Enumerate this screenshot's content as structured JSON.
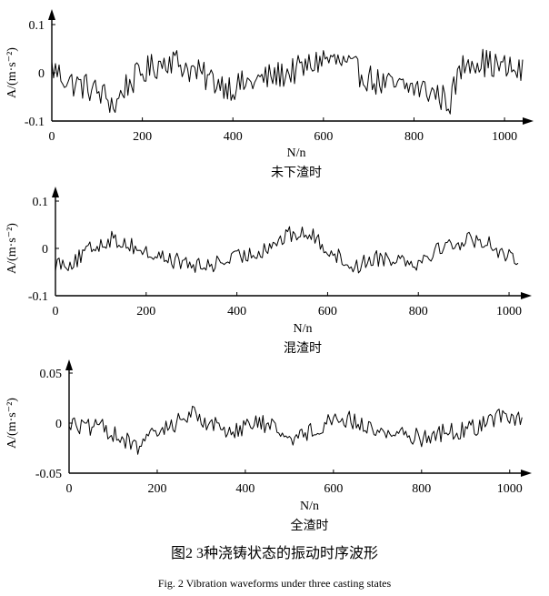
{
  "chart_data": [
    {
      "type": "line",
      "caption": "未下渣时",
      "xlabel": "N/n",
      "ylabel": "A/(m·s⁻²)",
      "xlim": [
        0,
        1040
      ],
      "ylim": [
        -0.1,
        0.1
      ],
      "xticks": [
        0,
        200,
        400,
        600,
        800,
        1000
      ],
      "yticks": [
        -0.1,
        0,
        0.1
      ],
      "xtick_labels": [
        "0",
        "200",
        "400",
        "600",
        "800",
        "1000"
      ],
      "ytick_labels": [
        "-0.1",
        "0",
        "0.1"
      ],
      "x_end": 1040,
      "points": [
        [
          0,
          0.01
        ],
        [
          40,
          -0.02
        ],
        [
          80,
          -0.03
        ],
        [
          120,
          -0.05
        ],
        [
          140,
          -0.07
        ],
        [
          160,
          -0.03
        ],
        [
          200,
          0.0
        ],
        [
          240,
          0.02
        ],
        [
          260,
          0.03
        ],
        [
          300,
          0.01
        ],
        [
          340,
          -0.01
        ],
        [
          400,
          -0.03
        ],
        [
          440,
          -0.02
        ],
        [
          480,
          -0.01
        ],
        [
          520,
          0.0
        ],
        [
          560,
          0.01
        ],
        [
          600,
          0.03
        ],
        [
          640,
          0.02
        ],
        [
          680,
          0.0
        ],
        [
          720,
          -0.02
        ],
        [
          760,
          -0.03
        ],
        [
          800,
          -0.03
        ],
        [
          840,
          -0.04
        ],
        [
          880,
          -0.06
        ],
        [
          900,
          0.0
        ],
        [
          920,
          0.03
        ],
        [
          960,
          0.02
        ],
        [
          1000,
          0.01
        ],
        [
          1040,
          0.0
        ]
      ],
      "noise_amplitude": 0.03
    },
    {
      "type": "line",
      "caption": "混渣时",
      "xlabel": "N/n",
      "ylabel": "A/(m·s⁻²)",
      "xlim": [
        0,
        1050
      ],
      "ylim": [
        -0.1,
        0.1
      ],
      "xticks": [
        0,
        200,
        400,
        600,
        800,
        1000
      ],
      "yticks": [
        -0.1,
        0,
        0.1
      ],
      "xtick_labels": [
        "0",
        "200",
        "400",
        "600",
        "800",
        "1000"
      ],
      "ytick_labels": [
        "-0.1",
        "0",
        "0.1"
      ],
      "x_end": 1020,
      "points": [
        [
          0,
          -0.03
        ],
        [
          40,
          -0.03
        ],
        [
          80,
          0.0
        ],
        [
          120,
          0.02
        ],
        [
          160,
          0.01
        ],
        [
          200,
          -0.01
        ],
        [
          240,
          -0.02
        ],
        [
          280,
          -0.03
        ],
        [
          320,
          -0.04
        ],
        [
          360,
          -0.03
        ],
        [
          400,
          -0.02
        ],
        [
          440,
          -0.01
        ],
        [
          480,
          0.01
        ],
        [
          520,
          0.03
        ],
        [
          560,
          0.03
        ],
        [
          600,
          0.0
        ],
        [
          640,
          -0.03
        ],
        [
          660,
          -0.04
        ],
        [
          700,
          -0.02
        ],
        [
          760,
          -0.02
        ],
        [
          800,
          -0.03
        ],
        [
          840,
          0.0
        ],
        [
          880,
          0.01
        ],
        [
          920,
          0.02
        ],
        [
          960,
          0.01
        ],
        [
          1000,
          -0.02
        ],
        [
          1020,
          -0.04
        ]
      ],
      "noise_amplitude": 0.018
    },
    {
      "type": "line",
      "caption": "全渣时",
      "xlabel": "N/n",
      "ylabel": "A/(m·s⁻²)",
      "xlim": [
        0,
        1050
      ],
      "ylim": [
        -0.05,
        0.05
      ],
      "xticks": [
        0,
        200,
        400,
        600,
        800,
        1000
      ],
      "yticks": [
        -0.05,
        0,
        0.05
      ],
      "xtick_labels": [
        "0",
        "200",
        "400",
        "600",
        "800",
        "1000"
      ],
      "ytick_labels": [
        "-0.05",
        "0",
        "0.05"
      ],
      "x_end": 1030,
      "points": [
        [
          0,
          0.0
        ],
        [
          40,
          -0.005
        ],
        [
          80,
          -0.005
        ],
        [
          120,
          -0.015
        ],
        [
          150,
          -0.025
        ],
        [
          200,
          -0.01
        ],
        [
          240,
          0.0
        ],
        [
          280,
          0.01
        ],
        [
          320,
          0.0
        ],
        [
          360,
          -0.008
        ],
        [
          400,
          -0.003
        ],
        [
          440,
          0.0
        ],
        [
          480,
          -0.008
        ],
        [
          520,
          -0.015
        ],
        [
          560,
          -0.005
        ],
        [
          600,
          0.005
        ],
        [
          640,
          0.003
        ],
        [
          680,
          -0.005
        ],
        [
          720,
          -0.01
        ],
        [
          760,
          -0.01
        ],
        [
          800,
          -0.015
        ],
        [
          840,
          -0.01
        ],
        [
          880,
          -0.008
        ],
        [
          920,
          -0.005
        ],
        [
          960,
          0.005
        ],
        [
          1000,
          0.008
        ],
        [
          1030,
          0.0
        ]
      ],
      "noise_amplitude": 0.009
    }
  ],
  "figure_caption_cn": "图2  3种浇铸状态的振动时序波形",
  "figure_caption_en": "Fig. 2   Vibration waveforms under three casting states"
}
